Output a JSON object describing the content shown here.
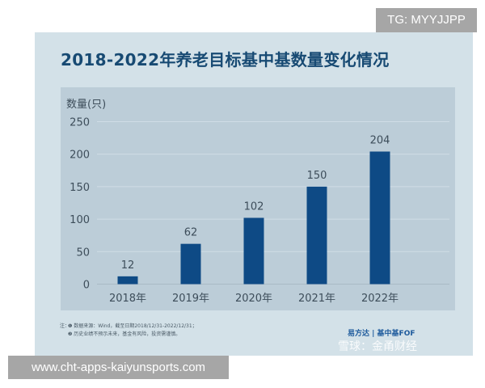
{
  "chart_data": {
    "type": "bar",
    "title": "2018-2022年养老目标基中基数量变化情况",
    "ylabel": "数量(只)",
    "xlabel": "",
    "categories": [
      "2018年",
      "2019年",
      "2020年",
      "2021年",
      "2022年"
    ],
    "values": [
      12,
      62,
      102,
      150,
      204
    ],
    "data_labels": [
      "12",
      "62",
      "102",
      "150",
      "204"
    ],
    "ylim": [
      0,
      250
    ],
    "yticks": [
      "0",
      "50",
      "100",
      "150",
      "200",
      "250"
    ],
    "grid": true,
    "bar_color": "#0e4a85"
  },
  "notes": {
    "prefix": "注：",
    "line1": "❶ 数据来源：Wind，截至日期2018/12/31-2022/12/31；",
    "line2": "❷ 历史业绩不预示未来，基金有风险，投资需谨慎。"
  },
  "logo": {
    "brand": "易方达 | 基中基FOF"
  },
  "watermarks": {
    "xueqiu": "雪球：金甬财经",
    "tg": "TG: MYYJJPP",
    "url": "www.cht-apps-kaiyunsports.com"
  }
}
